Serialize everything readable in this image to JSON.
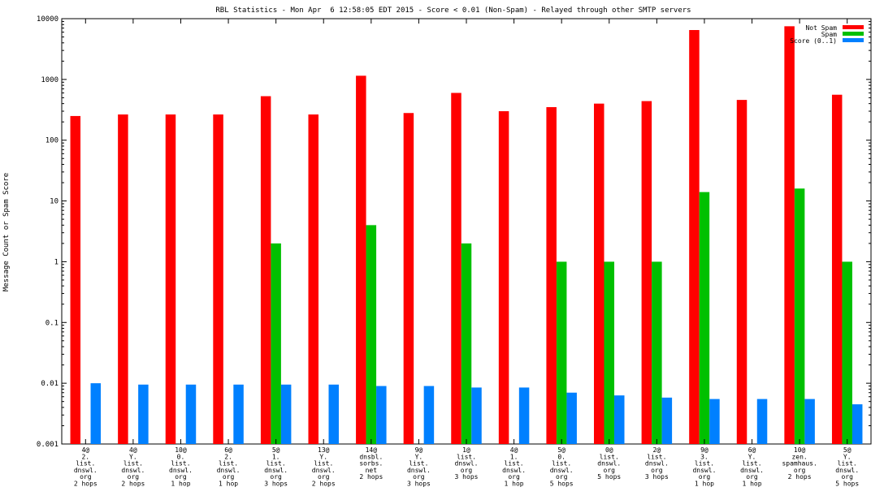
{
  "chart_data": {
    "type": "bar",
    "title": "RBL Statistics - Mon Apr  6 12:58:05 EDT 2015 - Score < 0.01 (Non-Spam) - Relayed through other SMTP servers",
    "xlabel": "",
    "ylabel": "Message Count or Spam Score",
    "yscale": "log",
    "ylim": [
      0.001,
      10000
    ],
    "yticks": [
      "0.001",
      "0.01",
      "0.1",
      "1",
      "10",
      "100",
      "1000",
      "10000"
    ],
    "legend_position": "top-right",
    "grid": false,
    "categories": [
      [
        "4@",
        "2.",
        "list.",
        "dnswl.",
        "org",
        "2 hops"
      ],
      [
        "4@",
        "Y.",
        "list.",
        "dnswl.",
        "org",
        "2 hops"
      ],
      [
        "10@",
        "0.",
        "list.",
        "dnswl.",
        "org",
        "1 hop"
      ],
      [
        "6@",
        "2.",
        "list.",
        "dnswl.",
        "org",
        "1 hop"
      ],
      [
        "5@",
        "1.",
        "list.",
        "dnswl.",
        "org",
        "3 hops"
      ],
      [
        "13@",
        "Y.",
        "list.",
        "dnswl.",
        "org",
        "2 hops"
      ],
      [
        "14@",
        "dnsbl.",
        "sorbs.",
        "net",
        "2 hops"
      ],
      [
        "9@",
        "Y.",
        "list.",
        "dnswl.",
        "org",
        "3 hops"
      ],
      [
        "1@",
        "list.",
        "dnswl.",
        "org",
        "3 hops"
      ],
      [
        "4@",
        "1.",
        "list.",
        "dnswl.",
        "org",
        "1 hop"
      ],
      [
        "5@",
        "0.",
        "list.",
        "dnswl.",
        "org",
        "5 hops"
      ],
      [
        "0@",
        "list.",
        "dnswl.",
        "org",
        "5 hops"
      ],
      [
        "2@",
        "list.",
        "dnswl.",
        "org",
        "3 hops"
      ],
      [
        "9@",
        "3.",
        "list.",
        "dnswl.",
        "org",
        "1 hop"
      ],
      [
        "6@",
        "Y.",
        "list.",
        "dnswl.",
        "org",
        "1 hop"
      ],
      [
        "10@",
        "zen.",
        "spamhaus.",
        "org",
        "2 hops"
      ],
      [
        "5@",
        "Y.",
        "list.",
        "dnswl.",
        "org",
        "5 hops"
      ]
    ],
    "series": [
      {
        "name": "Not Spam",
        "color": "#ff0000",
        "values": [
          250,
          265,
          265,
          265,
          530,
          265,
          1150,
          280,
          600,
          300,
          350,
          400,
          440,
          6500,
          460,
          7500,
          560
        ]
      },
      {
        "name": "Spam",
        "color": "#00c000",
        "values": [
          0,
          0,
          0,
          0,
          2,
          0,
          4,
          0,
          2,
          0,
          1,
          1,
          1,
          14,
          0,
          16,
          1
        ]
      },
      {
        "name": "Score (0..1)",
        "color": "#0080ff",
        "values": [
          0.01,
          0.0095,
          0.0095,
          0.0095,
          0.0095,
          0.0095,
          0.009,
          0.009,
          0.0085,
          0.0085,
          0.007,
          0.0063,
          0.0058,
          0.0055,
          0.0055,
          0.0055,
          0.0045
        ]
      }
    ]
  }
}
